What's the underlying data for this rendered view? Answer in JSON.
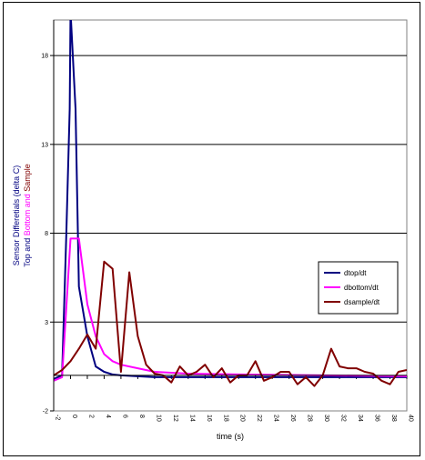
{
  "chart_data": {
    "type": "line",
    "xlabel": "time (s)",
    "ylabel_lines": [
      [
        {
          "text": "Sensor Differetials (delta C)",
          "color": "#000080"
        }
      ],
      [
        {
          "text": "Top and ",
          "color": "#000080"
        },
        {
          "text": "Bottom and ",
          "color": "#ff00ff"
        },
        {
          "text": "Sample",
          "color": "#800000"
        }
      ]
    ],
    "xlim": [
      -2,
      40
    ],
    "ylim": [
      -2,
      20
    ],
    "xticks": [
      -2,
      0,
      2,
      4,
      6,
      8,
      10,
      12,
      14,
      16,
      18,
      20,
      22,
      24,
      26,
      28,
      30,
      32,
      34,
      36,
      38,
      40
    ],
    "yticks": [
      -2,
      3,
      8,
      13,
      18
    ],
    "grid": "horizontal",
    "legend_placement": "right-middle",
    "series": [
      {
        "name": "dtop/dt",
        "color": "#000080",
        "points": [
          [
            -2,
            -0.2
          ],
          [
            -1,
            0
          ],
          [
            -0.5,
            8
          ],
          [
            -0.1,
            15
          ],
          [
            0,
            20.5
          ],
          [
            0.6,
            15
          ],
          [
            1,
            5
          ],
          [
            2,
            2.2
          ],
          [
            3,
            0.5
          ],
          [
            4,
            0.2
          ],
          [
            5,
            0.05
          ],
          [
            6,
            0
          ],
          [
            8,
            -0.05
          ],
          [
            10,
            -0.1
          ],
          [
            14,
            -0.1
          ],
          [
            20,
            -0.1
          ],
          [
            30,
            -0.1
          ],
          [
            40,
            -0.1
          ]
        ]
      },
      {
        "name": "dbottom/dt",
        "color": "#ff00ff",
        "points": [
          [
            -2,
            -0.3
          ],
          [
            -1,
            -0.1
          ],
          [
            0,
            7.7
          ],
          [
            1,
            7.7
          ],
          [
            2,
            4.0
          ],
          [
            3,
            2.2
          ],
          [
            4,
            1.2
          ],
          [
            5,
            0.8
          ],
          [
            6,
            0.6
          ],
          [
            8,
            0.4
          ],
          [
            10,
            0.2
          ],
          [
            14,
            0.1
          ],
          [
            20,
            0.05
          ],
          [
            30,
            0
          ],
          [
            40,
            -0.05
          ]
        ]
      },
      {
        "name": "dsample/dt",
        "color": "#800000",
        "points": [
          [
            -2,
            0
          ],
          [
            -1,
            0.3
          ],
          [
            0,
            0.8
          ],
          [
            1,
            1.5
          ],
          [
            2,
            2.3
          ],
          [
            3,
            1.5
          ],
          [
            4,
            6.4
          ],
          [
            5,
            6.0
          ],
          [
            6,
            0.2
          ],
          [
            7,
            5.8
          ],
          [
            8,
            2.2
          ],
          [
            9,
            0.6
          ],
          [
            10,
            0.1
          ],
          [
            11,
            0
          ],
          [
            12,
            -0.4
          ],
          [
            13,
            0.5
          ],
          [
            14,
            0
          ],
          [
            15,
            0.2
          ],
          [
            16,
            0.6
          ],
          [
            17,
            -0.1
          ],
          [
            18,
            0.4
          ],
          [
            19,
            -0.4
          ],
          [
            20,
            0
          ],
          [
            21,
            0
          ],
          [
            22,
            0.8
          ],
          [
            23,
            -0.3
          ],
          [
            24,
            -0.1
          ],
          [
            25,
            0.2
          ],
          [
            26,
            0.2
          ],
          [
            27,
            -0.5
          ],
          [
            28,
            -0.1
          ],
          [
            29,
            -0.6
          ],
          [
            30,
            0
          ],
          [
            31,
            1.5
          ],
          [
            32,
            0.5
          ],
          [
            33,
            0.4
          ],
          [
            34,
            0.4
          ],
          [
            35,
            0.2
          ],
          [
            36,
            0.1
          ],
          [
            37,
            -0.3
          ],
          [
            38,
            -0.5
          ],
          [
            39,
            0.2
          ],
          [
            40,
            0.3
          ]
        ]
      }
    ]
  }
}
